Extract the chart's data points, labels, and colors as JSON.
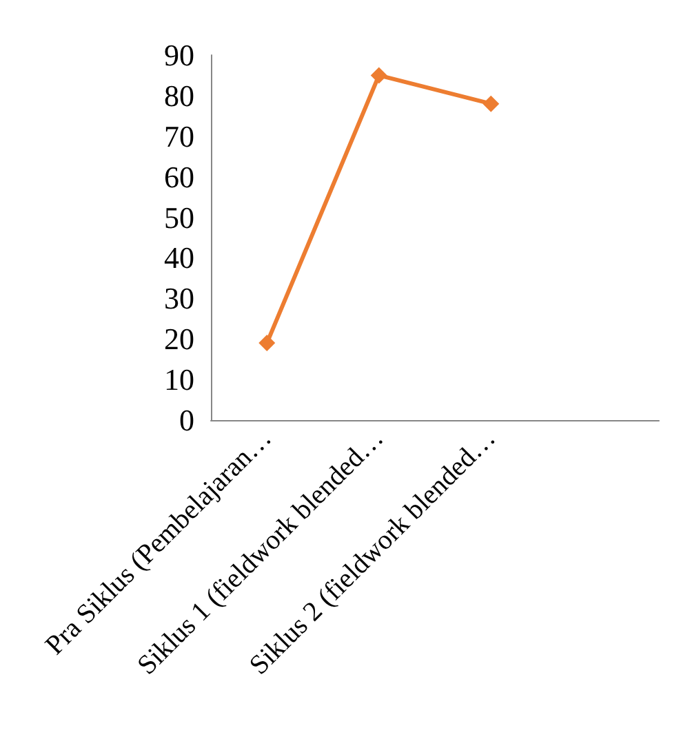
{
  "chart_data": {
    "type": "line",
    "categories": [
      "Pra Siklus (Pembelajaran…",
      "Siklus 1 (fieldwork blended…",
      "Siklus 2 (fieldwork blended…",
      null
    ],
    "series": [
      {
        "color": "#ed7d31",
        "values": [
          19,
          85,
          78,
          null
        ]
      }
    ],
    "ylim": [
      0,
      90
    ],
    "yticks": [
      0,
      10,
      20,
      30,
      40,
      50,
      60,
      70,
      80,
      90
    ],
    "marker": "diamond",
    "line_style": "solid"
  }
}
